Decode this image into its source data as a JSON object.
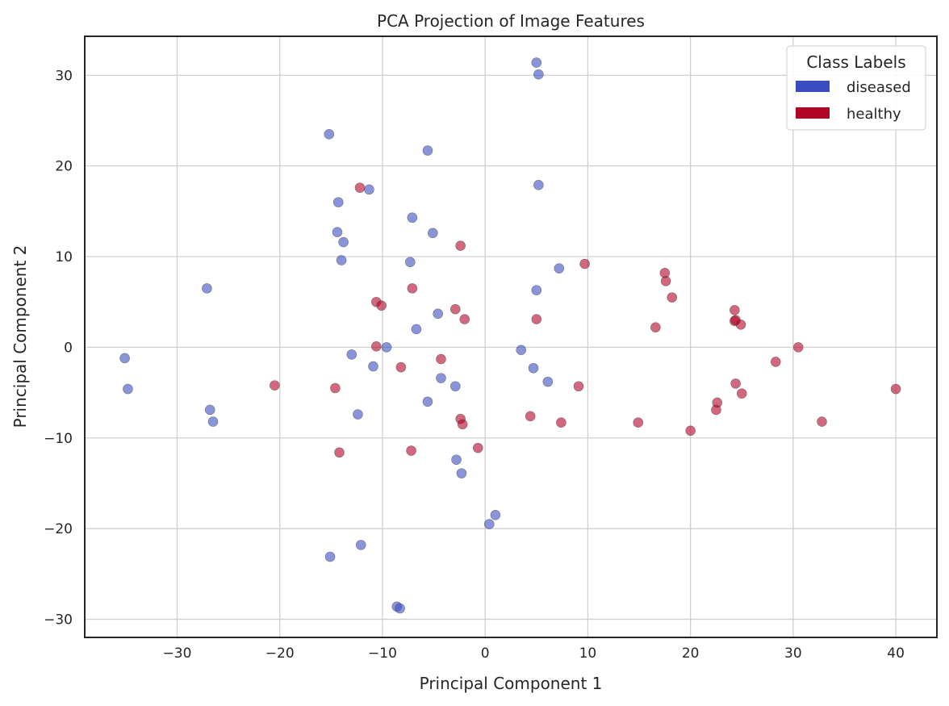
{
  "chart_data": {
    "type": "scatter",
    "title": "PCA Projection of Image Features",
    "xlabel": "Principal Component 1",
    "ylabel": "Principal Component 2",
    "xlim": [
      -39,
      44
    ],
    "ylim": [
      -32,
      34.3
    ],
    "xticks": [
      -30,
      -20,
      -10,
      0,
      10,
      20,
      30,
      40
    ],
    "yticks": [
      -30,
      -20,
      -10,
      0,
      10,
      20,
      30
    ],
    "xtick_labels": [
      "−30",
      "−20",
      "−10",
      "0",
      "10",
      "20",
      "30",
      "40"
    ],
    "ytick_labels": [
      "−30",
      "−20",
      "−10",
      "0",
      "10",
      "20",
      "30"
    ],
    "grid": true,
    "legend": {
      "title": "Class Labels",
      "placement": "top-right",
      "entries": [
        {
          "label": "diseased",
          "color": "#3b4cc0"
        },
        {
          "label": "healthy",
          "color": "#b40426"
        }
      ]
    },
    "series": [
      {
        "name": "diseased",
        "color": "#3b4cc0",
        "points": [
          [
            5.0,
            31.4
          ],
          [
            5.2,
            30.1
          ],
          [
            -15.2,
            23.5
          ],
          [
            -5.6,
            21.7
          ],
          [
            5.2,
            17.9
          ],
          [
            -11.3,
            17.4
          ],
          [
            -14.3,
            16.0
          ],
          [
            -7.1,
            14.3
          ],
          [
            -14.4,
            12.7
          ],
          [
            -5.1,
            12.6
          ],
          [
            -13.8,
            11.6
          ],
          [
            -14.0,
            9.6
          ],
          [
            -7.3,
            9.4
          ],
          [
            7.2,
            8.7
          ],
          [
            -27.1,
            6.5
          ],
          [
            5.0,
            6.3
          ],
          [
            -4.6,
            3.7
          ],
          [
            -6.7,
            2.0
          ],
          [
            -9.6,
            0.0
          ],
          [
            3.5,
            -0.3
          ],
          [
            -13.0,
            -0.8
          ],
          [
            -35.1,
            -1.2
          ],
          [
            -10.9,
            -2.1
          ],
          [
            4.7,
            -2.3
          ],
          [
            -4.3,
            -3.4
          ],
          [
            6.1,
            -3.8
          ],
          [
            -34.8,
            -4.6
          ],
          [
            -2.9,
            -4.3
          ],
          [
            -5.6,
            -6.0
          ],
          [
            -26.8,
            -6.9
          ],
          [
            -12.4,
            -7.4
          ],
          [
            -26.5,
            -8.2
          ],
          [
            -2.8,
            -12.4
          ],
          [
            -2.3,
            -13.9
          ],
          [
            1.0,
            -18.5
          ],
          [
            0.4,
            -19.5
          ],
          [
            -12.1,
            -21.8
          ],
          [
            -15.1,
            -23.1
          ],
          [
            -8.6,
            -28.6
          ],
          [
            -8.3,
            -28.8
          ]
        ]
      },
      {
        "name": "healthy",
        "color": "#b40426",
        "points": [
          [
            -12.2,
            17.6
          ],
          [
            -2.4,
            11.2
          ],
          [
            9.7,
            9.2
          ],
          [
            17.5,
            8.2
          ],
          [
            17.6,
            7.3
          ],
          [
            -7.1,
            6.5
          ],
          [
            18.2,
            5.5
          ],
          [
            -10.6,
            5.0
          ],
          [
            -10.1,
            4.6
          ],
          [
            24.3,
            4.1
          ],
          [
            -2.9,
            4.2
          ],
          [
            -2.0,
            3.1
          ],
          [
            5.0,
            3.1
          ],
          [
            24.3,
            2.9
          ],
          [
            24.4,
            3.0
          ],
          [
            24.9,
            2.5
          ],
          [
            16.6,
            2.2
          ],
          [
            -10.6,
            0.1
          ],
          [
            30.5,
            0.0
          ],
          [
            -4.3,
            -1.3
          ],
          [
            28.3,
            -1.6
          ],
          [
            -8.2,
            -2.2
          ],
          [
            -20.5,
            -4.2
          ],
          [
            24.4,
            -4.0
          ],
          [
            9.1,
            -4.3
          ],
          [
            -14.6,
            -4.5
          ],
          [
            40.0,
            -4.6
          ],
          [
            25.0,
            -5.1
          ],
          [
            22.6,
            -6.1
          ],
          [
            22.5,
            -6.9
          ],
          [
            4.4,
            -7.6
          ],
          [
            -2.4,
            -7.9
          ],
          [
            -2.2,
            -8.5
          ],
          [
            7.4,
            -8.3
          ],
          [
            14.9,
            -8.3
          ],
          [
            32.8,
            -8.2
          ],
          [
            20.0,
            -9.2
          ],
          [
            -0.7,
            -11.1
          ],
          [
            -7.2,
            -11.4
          ],
          [
            -14.2,
            -11.6
          ]
        ]
      }
    ]
  }
}
